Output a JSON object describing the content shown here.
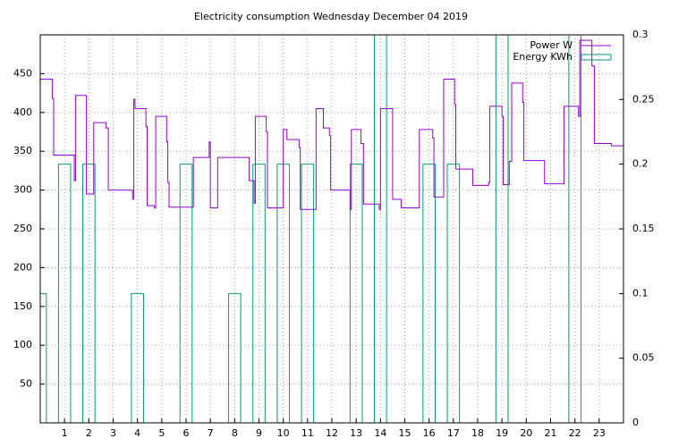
{
  "chart_data": {
    "type": "line",
    "title": "Electricity consumption Wednesday December 04 2019",
    "xlim": [
      0,
      24
    ],
    "xticks": [
      1,
      2,
      3,
      4,
      5,
      6,
      7,
      8,
      9,
      10,
      11,
      12,
      13,
      14,
      15,
      16,
      17,
      18,
      19,
      20,
      21,
      22,
      23
    ],
    "ylim": [
      0,
      500
    ],
    "yticks": [
      50,
      100,
      150,
      200,
      250,
      300,
      350,
      400,
      450
    ],
    "y2lim": [
      0,
      0.3
    ],
    "y2ticks": [
      0,
      0.05,
      0.1,
      0.15,
      0.2,
      0.25,
      0.3
    ],
    "grid": true,
    "legend": "top-right",
    "series": [
      {
        "name": "Power W",
        "color": "#9400d3",
        "style": "line",
        "x": [
          0,
          0.5,
          0.5,
          0.55,
          0.55,
          1.4,
          1.4,
          1.45,
          1.45,
          1.9,
          1.9,
          2.2,
          2.2,
          2.7,
          2.7,
          2.8,
          2.8,
          3.8,
          3.8,
          3.85,
          3.85,
          3.9,
          3.9,
          4.35,
          4.35,
          4.4,
          4.4,
          4.7,
          4.7,
          4.75,
          4.75,
          5.2,
          5.2,
          5.25,
          5.25,
          5.3,
          5.3,
          6.3,
          6.3,
          6.95,
          6.95,
          7.0,
          7.0,
          7.3,
          7.3,
          8.6,
          8.6,
          8.8,
          8.8,
          8.85,
          8.85,
          9.3,
          9.3,
          9.35,
          9.35,
          10.0,
          10.0,
          10.15,
          10.15,
          10.65,
          10.65,
          10.7,
          10.7,
          11.35,
          11.35,
          11.65,
          11.65,
          11.9,
          11.9,
          11.95,
          11.95,
          12.75,
          12.75,
          12.8,
          12.8,
          13.2,
          13.2,
          13.3,
          13.3,
          13.95,
          13.95,
          14.0,
          14.0,
          14.5,
          14.5,
          14.85,
          14.85,
          15.6,
          15.6,
          16.15,
          16.15,
          16.2,
          16.2,
          16.6,
          16.6,
          17.05,
          17.05,
          17.1,
          17.1,
          17.8,
          17.8,
          18.45,
          18.45,
          18.5,
          18.5,
          19.0,
          19.0,
          19.05,
          19.05,
          19.3,
          19.3,
          19.4,
          19.4,
          19.85,
          19.85,
          19.9,
          19.9,
          20.75,
          20.75,
          21.55,
          21.55,
          22.15,
          22.15,
          22.2,
          22.2,
          22.7,
          22.7,
          22.8,
          22.8,
          23.5,
          23.5,
          24
        ],
        "values": [
          443,
          443,
          418,
          418,
          345,
          345,
          312,
          312,
          422,
          422,
          295,
          295,
          387,
          387,
          380,
          380,
          300,
          300,
          288,
          288,
          417,
          417,
          405,
          405,
          382,
          382,
          280,
          280,
          277,
          277,
          395,
          395,
          362,
          362,
          310,
          310,
          278,
          278,
          342,
          342,
          362,
          362,
          277,
          277,
          342,
          342,
          312,
          312,
          283,
          283,
          395,
          395,
          375,
          375,
          277,
          277,
          378,
          378,
          365,
          365,
          355,
          355,
          275,
          275,
          405,
          405,
          380,
          380,
          370,
          370,
          300,
          300,
          275,
          275,
          378,
          378,
          360,
          360,
          282,
          282,
          275,
          275,
          405,
          405,
          288,
          288,
          277,
          277,
          378,
          378,
          367,
          367,
          291,
          291,
          443,
          443,
          410,
          410,
          327,
          327,
          306,
          306,
          310,
          310,
          408,
          408,
          395,
          395,
          307,
          307,
          337,
          337,
          438,
          438,
          413,
          413,
          338,
          338,
          308,
          308,
          408,
          408,
          395,
          395,
          493,
          493,
          460,
          460,
          360,
          360,
          357,
          357
        ]
      },
      {
        "name": "Energy KWh",
        "color": "#009e73",
        "style": "boxes",
        "axis": "y2",
        "x": [
          0,
          1,
          2,
          3,
          4,
          5,
          6,
          7,
          8,
          9,
          10,
          11,
          12,
          13,
          14,
          15,
          16,
          17,
          18,
          19,
          20,
          21,
          22,
          23
        ],
        "values": [
          0.1,
          0.2,
          0.2,
          0,
          0.1,
          0,
          0.2,
          0,
          0.1,
          0.2,
          0.2,
          0.2,
          0,
          0.2,
          0.4,
          0,
          0.2,
          0.2,
          0,
          0.4,
          0,
          0,
          0.4,
          0
        ]
      }
    ]
  }
}
